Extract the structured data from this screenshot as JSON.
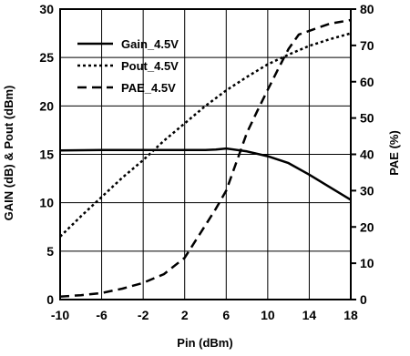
{
  "chart_data": {
    "type": "line",
    "title": "",
    "xlabel": "Pin (dBm)",
    "ylabel_left": "GAIN (dB) & Pout (dBm)",
    "ylabel_right": "PAE (%)",
    "xlim": [
      -10,
      18
    ],
    "ylim_left": [
      0,
      30
    ],
    "ylim_right": [
      0,
      80
    ],
    "x_ticks": [
      -10,
      -6,
      -2,
      2,
      6,
      10,
      14,
      18
    ],
    "y_ticks_left": [
      0,
      5,
      10,
      15,
      20,
      25,
      30
    ],
    "y_ticks_right": [
      0,
      10,
      20,
      30,
      40,
      50,
      60,
      70,
      80
    ],
    "grid": true,
    "legend_position": "top-left",
    "series": [
      {
        "name": "Gain_4.5V",
        "axis": "left",
        "style": "solid",
        "x": [
          -10,
          -6,
          -2,
          2,
          4,
          5,
          6,
          8,
          10,
          12,
          14,
          16,
          18
        ],
        "y": [
          15.4,
          15.45,
          15.45,
          15.45,
          15.45,
          15.5,
          15.6,
          15.3,
          14.8,
          14.1,
          12.9,
          11.6,
          10.3
        ]
      },
      {
        "name": "Pout_4.5V",
        "axis": "left",
        "style": "dotted",
        "x": [
          -10,
          -8,
          -6,
          -4,
          -2,
          0,
          2,
          4,
          6,
          8,
          10,
          12,
          14,
          16,
          18
        ],
        "y": [
          6.5,
          8.6,
          10.6,
          12.6,
          14.4,
          16.4,
          18.2,
          20.0,
          21.6,
          23.0,
          24.3,
          25.3,
          26.2,
          26.9,
          27.5
        ]
      },
      {
        "name": "PAE_4.5V",
        "axis": "right",
        "style": "dashed",
        "x": [
          -10,
          -8,
          -6,
          -4,
          -2,
          0,
          2,
          4,
          5,
          6,
          7,
          8,
          9,
          10,
          11,
          12,
          13,
          14,
          15,
          16,
          17,
          18
        ],
        "y": [
          0.8,
          1.2,
          1.8,
          3.0,
          4.6,
          7.0,
          11.5,
          20.5,
          25.0,
          30.0,
          38.0,
          46.0,
          52.0,
          57.8,
          63.5,
          69.0,
          73.0,
          74.0,
          75.0,
          76.0,
          76.5,
          77.0
        ]
      }
    ]
  }
}
